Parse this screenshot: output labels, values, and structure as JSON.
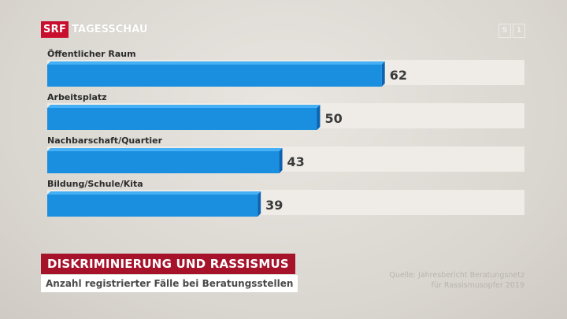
{
  "broadcaster": {
    "logo_text": "SRF",
    "show_name": "TAGESSCHAU",
    "channel_icon": "srf1-channel-icon",
    "channel_chars": [
      "S",
      "1"
    ]
  },
  "colors": {
    "bar": "#1a8fe0",
    "bar_top": "#45b0f5",
    "bar_side": "#0c63b0",
    "title_bg": "#a5122a"
  },
  "title": "DISKRIMINIERUNG UND RASSISMUS",
  "subtitle": "Anzahl registrierter Fälle bei Beratungsstellen",
  "source": {
    "line1": "Quelle: Jahresbericht Beratungsnetz",
    "line2": "für Rassismusopfer 2019"
  },
  "chart_data": {
    "type": "bar",
    "orientation": "horizontal",
    "categories": [
      "Öffentlicher Raum",
      "Arbeitsplatz",
      "Nachbarschaft/Quartier",
      "Bildung/Schule/Kita"
    ],
    "values": [
      62,
      50,
      43,
      39
    ],
    "title": "DISKRIMINIERUNG UND RASSISMUS",
    "subtitle": "Anzahl registrierter Fälle bei Beratungsstellen",
    "data_labels": true,
    "grid": false
  }
}
